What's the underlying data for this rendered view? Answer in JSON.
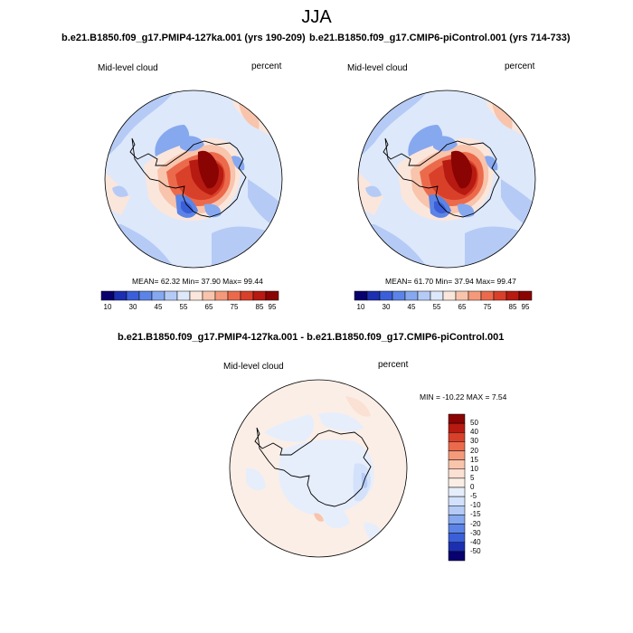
{
  "figure": {
    "season": "JJA"
  },
  "panels": {
    "left": {
      "title": "b.e21.B1850.f09_g17.PMIP4-127ka.001 (yrs 190-209)",
      "variable": "Mid-level cloud",
      "units": "percent",
      "stats": "MEAN=  62.32  Min=  37.90  Max=  99.44"
    },
    "right": {
      "title": "b.e21.B1850.f09_g17.CMIP6-piControl.001 (yrs 714-733)",
      "variable": "Mid-level cloud",
      "units": "percent",
      "stats": "MEAN=  61.70  Min=  37.94  Max=  99.47"
    },
    "diff": {
      "title": "b.e21.B1850.f09_g17.PMIP4-127ka.001 - b.e21.B1850.f09_g17.CMIP6-piControl.001",
      "variable": "Mid-level cloud",
      "units": "percent",
      "stats": "MIN = -10.22 MAX =   7.54"
    }
  },
  "colorbar_abs": {
    "labels": [
      "10",
      "30",
      "45",
      "55",
      "65",
      "75",
      "85",
      "95"
    ],
    "colors": [
      "#08006e",
      "#1c2fb0",
      "#3b5fd8",
      "#5b84e6",
      "#86a8ef",
      "#b5cbf6",
      "#dde8fb",
      "#fbe6dc",
      "#f8c4ac",
      "#f49a7a",
      "#ec6a4c",
      "#d9402a",
      "#b71a10",
      "#8a0404"
    ]
  },
  "colorbar_diff": {
    "labels": [
      "50",
      "40",
      "30",
      "20",
      "15",
      "10",
      "5",
      "0",
      "-5",
      "-10",
      "-15",
      "-20",
      "-30",
      "-40",
      "-50"
    ],
    "colors": [
      "#8a0404",
      "#b71a10",
      "#d9402a",
      "#ec6a4c",
      "#f49a7a",
      "#f8c4ac",
      "#fbe0d4",
      "#fbeee6",
      "#e6eefc",
      "#d3e1fa",
      "#b5cbf6",
      "#86a8ef",
      "#5b84e6",
      "#3b5fd8",
      "#1c2fb0",
      "#08006e"
    ]
  }
}
